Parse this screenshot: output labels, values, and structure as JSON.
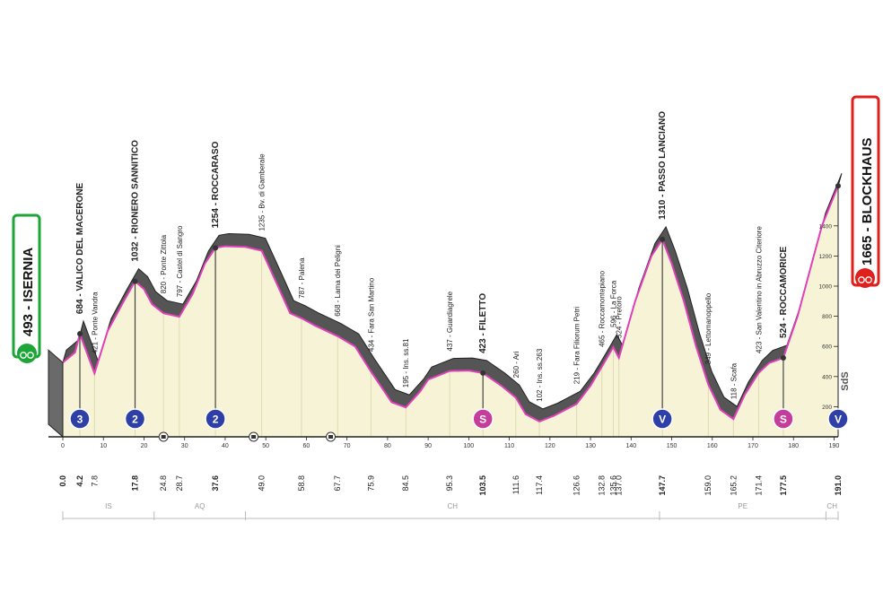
{
  "chart_data": {
    "type": "area",
    "title": "",
    "xlabel": "",
    "ylabel": "",
    "xlim": [
      0,
      191
    ],
    "ylim": [
      0,
      1800
    ],
    "colors": {
      "fill": "#f6f3d6",
      "surface": "#555555",
      "road": "#e040b8",
      "start": "#1ea538",
      "finish": "#e0201c",
      "sprint": "#c63c9a",
      "gpm": "#2e3fa8",
      "marker": "#1e2f8c"
    },
    "start": {
      "label": "493 - ISERNIA",
      "km": 0,
      "alt": 493
    },
    "finish": {
      "label": "1665 - BLOCKHAUS",
      "km": 191,
      "alt": 1665
    },
    "profile": [
      {
        "km": 0.0,
        "alt": 493
      },
      {
        "km": 3.0,
        "alt": 560
      },
      {
        "km": 4.2,
        "alt": 684
      },
      {
        "km": 7.8,
        "alt": 421
      },
      {
        "km": 11.0,
        "alt": 700
      },
      {
        "km": 15.0,
        "alt": 900
      },
      {
        "km": 17.8,
        "alt": 1032
      },
      {
        "km": 20.0,
        "alt": 980
      },
      {
        "km": 22.0,
        "alt": 880
      },
      {
        "km": 24.8,
        "alt": 820
      },
      {
        "km": 28.7,
        "alt": 797
      },
      {
        "km": 32.0,
        "alt": 950
      },
      {
        "km": 35.0,
        "alt": 1150
      },
      {
        "km": 37.6,
        "alt": 1254
      },
      {
        "km": 40.0,
        "alt": 1265
      },
      {
        "km": 45.0,
        "alt": 1260
      },
      {
        "km": 49.0,
        "alt": 1235
      },
      {
        "km": 53.0,
        "alt": 1000
      },
      {
        "km": 56.0,
        "alt": 820
      },
      {
        "km": 58.8,
        "alt": 787
      },
      {
        "km": 62.0,
        "alt": 740
      },
      {
        "km": 67.7,
        "alt": 668
      },
      {
        "km": 72.0,
        "alt": 600
      },
      {
        "km": 75.9,
        "alt": 434
      },
      {
        "km": 78.0,
        "alt": 350
      },
      {
        "km": 81.0,
        "alt": 230
      },
      {
        "km": 84.5,
        "alt": 195
      },
      {
        "km": 88.0,
        "alt": 300
      },
      {
        "km": 90.0,
        "alt": 380
      },
      {
        "km": 95.3,
        "alt": 437
      },
      {
        "km": 100.0,
        "alt": 440
      },
      {
        "km": 103.5,
        "alt": 423
      },
      {
        "km": 108.0,
        "alt": 340
      },
      {
        "km": 111.6,
        "alt": 260
      },
      {
        "km": 114.0,
        "alt": 150
      },
      {
        "km": 117.4,
        "alt": 102
      },
      {
        "km": 121.0,
        "alt": 140
      },
      {
        "km": 126.6,
        "alt": 219
      },
      {
        "km": 130.0,
        "alt": 340
      },
      {
        "km": 132.8,
        "alt": 465
      },
      {
        "km": 135.6,
        "alt": 596
      },
      {
        "km": 137.0,
        "alt": 524
      },
      {
        "km": 141.0,
        "alt": 900
      },
      {
        "km": 145.0,
        "alt": 1200
      },
      {
        "km": 147.7,
        "alt": 1310
      },
      {
        "km": 150.0,
        "alt": 1150
      },
      {
        "km": 153.0,
        "alt": 900
      },
      {
        "km": 156.0,
        "alt": 600
      },
      {
        "km": 159.0,
        "alt": 349
      },
      {
        "km": 162.0,
        "alt": 180
      },
      {
        "km": 165.2,
        "alt": 118
      },
      {
        "km": 168.0,
        "alt": 280
      },
      {
        "km": 171.4,
        "alt": 423
      },
      {
        "km": 174.0,
        "alt": 490
      },
      {
        "km": 177.5,
        "alt": 524
      },
      {
        "km": 181.0,
        "alt": 800
      },
      {
        "km": 184.0,
        "alt": 1100
      },
      {
        "km": 187.0,
        "alt": 1400
      },
      {
        "km": 191.0,
        "alt": 1665
      }
    ],
    "x_ticks": [
      0,
      10,
      20,
      30,
      40,
      50,
      60,
      70,
      80,
      90,
      100,
      110,
      120,
      130,
      140,
      150,
      160,
      170,
      180,
      190
    ],
    "y_ticks": [
      0,
      200,
      400,
      600,
      800,
      1000,
      1200,
      1400
    ],
    "waypoints": [
      {
        "km": 0.0,
        "km_label": "0.0",
        "alt": 493,
        "label": "",
        "bold": true
      },
      {
        "km": 4.2,
        "km_label": "4.2",
        "alt": 684,
        "label": "684 - VALICO DEL MACERONE",
        "bold": true,
        "line": true,
        "marker": "3",
        "marker_type": "gpm"
      },
      {
        "km": 7.8,
        "km_label": "7.8",
        "alt": 421,
        "label": "421 - Ponte Vandra",
        "bold": false
      },
      {
        "km": 17.8,
        "km_label": "17.8",
        "alt": 1032,
        "label": "1032 - RIONERO SANNITICO",
        "bold": true,
        "line": true,
        "marker": "2",
        "marker_type": "gpm"
      },
      {
        "km": 24.8,
        "km_label": "24.8",
        "alt": 820,
        "label": "820 - Ponte Zittola",
        "bold": false
      },
      {
        "km": 28.7,
        "km_label": "28.7",
        "alt": 797,
        "label": "797 - Castel di Sangro",
        "bold": false
      },
      {
        "km": 37.6,
        "km_label": "37.6",
        "alt": 1254,
        "label": "1254 - ROCCARASO",
        "bold": true,
        "line": true,
        "marker": "2",
        "marker_type": "gpm"
      },
      {
        "km": 49.0,
        "km_label": "49.0",
        "alt": 1235,
        "label": "1235 - Bv. di Gamberale",
        "bold": false
      },
      {
        "km": 58.8,
        "km_label": "58.8",
        "alt": 787,
        "label": "787 - Palena",
        "bold": false
      },
      {
        "km": 67.7,
        "km_label": "67.7",
        "alt": 668,
        "label": "668 - Lama dei Peligni",
        "bold": false
      },
      {
        "km": 75.9,
        "km_label": "75.9",
        "alt": 434,
        "label": "434 - Fara San Martino",
        "bold": false
      },
      {
        "km": 84.5,
        "km_label": "84.5",
        "alt": 195,
        "label": "195 - Ins. ss.81",
        "bold": false
      },
      {
        "km": 95.3,
        "km_label": "95.3",
        "alt": 437,
        "label": "437 - Guardiagrele",
        "bold": false
      },
      {
        "km": 103.5,
        "km_label": "103.5",
        "alt": 423,
        "label": "423 - FILETTO",
        "bold": true,
        "line": true,
        "marker": "S",
        "marker_type": "sprint"
      },
      {
        "km": 111.6,
        "km_label": "111.6",
        "alt": 260,
        "label": "260 - Ari",
        "bold": false
      },
      {
        "km": 117.4,
        "km_label": "117.4",
        "alt": 102,
        "label": "102 - Ins. ss.263",
        "bold": false
      },
      {
        "km": 126.6,
        "km_label": "126.6",
        "alt": 219,
        "label": "219 - Fara Filiorum Petri",
        "bold": false
      },
      {
        "km": 132.8,
        "km_label": "132.8",
        "alt": 465,
        "label": "465 - Roccamontepiano",
        "bold": false
      },
      {
        "km": 135.6,
        "km_label": "135.6",
        "alt": 596,
        "label": "596 - La Forca",
        "bold": false
      },
      {
        "km": 137.0,
        "km_label": "137.0",
        "alt": 524,
        "label": "524 - Pretoro",
        "bold": false
      },
      {
        "km": 147.7,
        "km_label": "147.7",
        "alt": 1310,
        "label": "1310 - PASSO LANCIANO",
        "bold": true,
        "line": true,
        "marker": "V",
        "marker_type": "gpm"
      },
      {
        "km": 159.0,
        "km_label": "159.0",
        "alt": 349,
        "label": "349 - Lettomanoppello",
        "bold": false
      },
      {
        "km": 165.2,
        "km_label": "165.2",
        "alt": 118,
        "label": "118 - Scafa",
        "bold": false
      },
      {
        "km": 171.4,
        "km_label": "171.4",
        "alt": 423,
        "label": "423 - San Valentino in Abruzzo Citeriore",
        "bold": false
      },
      {
        "km": 177.5,
        "km_label": "177.5",
        "alt": 524,
        "label": "524 - ROCCAMORICE",
        "bold": true,
        "line": true,
        "marker": "S",
        "marker_type": "sprint"
      },
      {
        "km": 191.0,
        "km_label": "191.0",
        "alt": 1665,
        "label": "",
        "bold": true,
        "marker": "V",
        "marker_type": "gpm"
      }
    ],
    "regions": [
      {
        "label": "IS",
        "from": 0,
        "to": 22.5
      },
      {
        "label": "AQ",
        "from": 22.5,
        "to": 45
      },
      {
        "label": "CH",
        "from": 45,
        "to": 147
      },
      {
        "label": "PE",
        "from": 147,
        "to": 188
      },
      {
        "label": "CH",
        "from": 188,
        "to": 191
      }
    ],
    "small_icons": [
      {
        "km": 24.8
      },
      {
        "km": 47.0
      },
      {
        "km": 66.0
      }
    ],
    "watermark": "SdS"
  }
}
